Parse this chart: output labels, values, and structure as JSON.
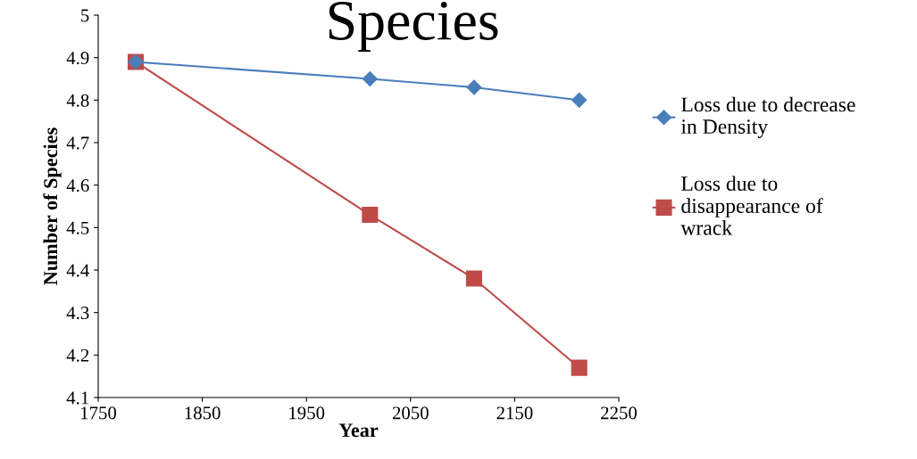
{
  "chart_data": {
    "type": "line",
    "title": "Species",
    "xlabel": "Year",
    "ylabel": "Number of Species",
    "x": [
      1786,
      2011,
      2111,
      2212
    ],
    "series": [
      {
        "name": "Loss due to decrease\nin Density",
        "color": "#4a7ebb",
        "marker": "diamond",
        "values": [
          4.89,
          4.85,
          4.83,
          4.8
        ]
      },
      {
        "name": "Loss due to\ndisappearance of\nwrack",
        "color": "#be4b48",
        "marker": "square",
        "values": [
          4.89,
          4.53,
          4.38,
          4.17
        ]
      }
    ],
    "xlim": [
      1750,
      2250
    ],
    "xticks": [
      1750,
      1850,
      1950,
      2050,
      2150,
      2250
    ],
    "ylim": [
      4.1,
      5
    ],
    "yticks": [
      4.1,
      4.2,
      4.3,
      4.4,
      4.5,
      4.6,
      4.7,
      4.8,
      4.9,
      5
    ],
    "grid": false,
    "legend": "right"
  }
}
